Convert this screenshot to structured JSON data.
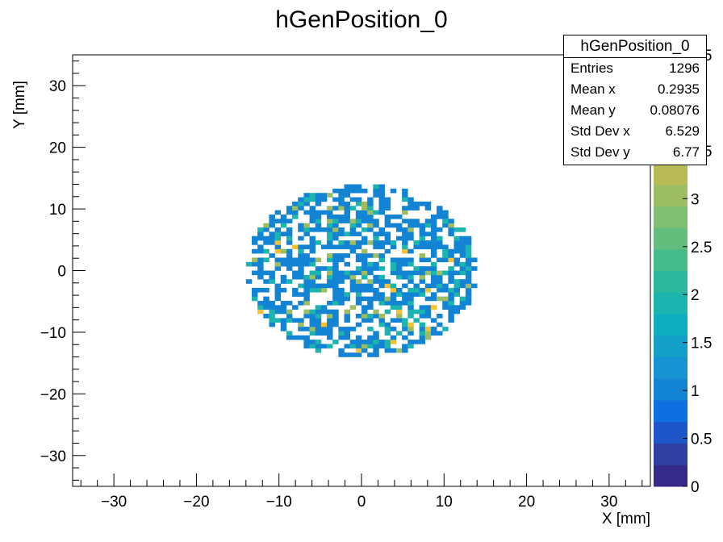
{
  "chart_data": {
    "type": "heatmap",
    "title": "hGenPosition_0",
    "xlabel": "X [mm]",
    "ylabel": "Y [mm]",
    "xlim": [
      -35,
      35
    ],
    "ylim": [
      -35,
      35
    ],
    "bins": 100,
    "x_ticks": [
      "−30",
      "−20",
      "−10",
      "0",
      "10",
      "20",
      "30"
    ],
    "y_ticks": [
      "−30",
      "−20",
      "−10",
      "0",
      "10",
      "20",
      "30"
    ],
    "z_ticks": [
      "0",
      "0.5",
      "1",
      "1.5",
      "2",
      "2.5",
      "3",
      "3.5",
      "4",
      "4.5"
    ],
    "zlim": [
      0,
      4.5
    ],
    "colormap": [
      "#352a87",
      "#2e3f9f",
      "#1e55c9",
      "#0f6ee0",
      "#1383d4",
      "#1792d2",
      "#149fc8",
      "#0eaec0",
      "#1cb4ae",
      "#2cb89d",
      "#46bc8c",
      "#63be7e",
      "#80be71",
      "#9dbd63",
      "#b8ba55",
      "#cfb74a",
      "#e5b640",
      "#f4c234",
      "#f9d527",
      "#f9e818"
    ],
    "description": "Disc-shaped occupancy, radius ~14 mm, centred near origin; counts 1-4 per bin",
    "disk_radius": 14,
    "counts_level1_fraction": 0.72
  },
  "stats": {
    "title": "hGenPosition_0",
    "rows": [
      {
        "label": "Entries",
        "value": "1296"
      },
      {
        "label": "Mean x",
        "value": "0.2935"
      },
      {
        "label": "Mean y",
        "value": "0.08076"
      },
      {
        "label": "Std Dev x",
        "value": "6.529"
      },
      {
        "label": "Std Dev y",
        "value": "6.77"
      }
    ]
  }
}
